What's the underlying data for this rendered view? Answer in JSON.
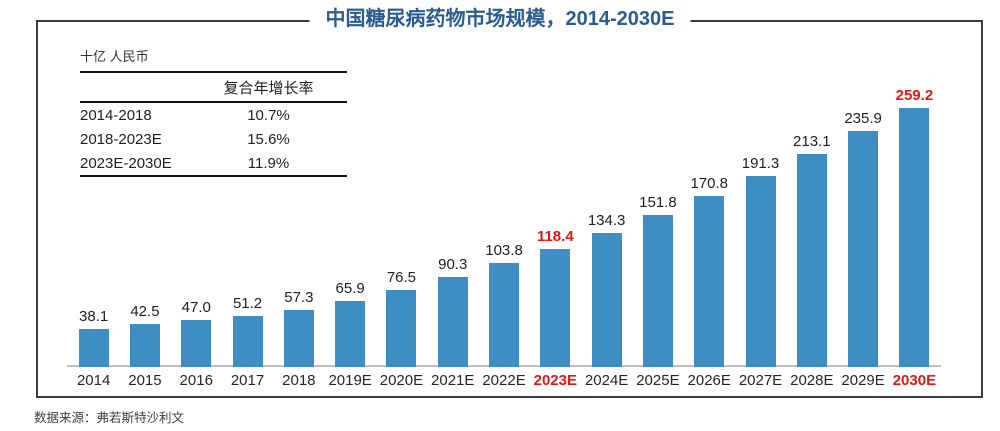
{
  "title": "中国糖尿病药物市场规模，2014-2030E",
  "unit_label": "十亿 人民币",
  "cagr_table": {
    "header": "复合年增长率",
    "rows": [
      {
        "period": "2014-2018",
        "value": "10.7%"
      },
      {
        "period": "2018-2023E",
        "value": "15.6%"
      },
      {
        "period": "2023E-2030E",
        "value": "11.9%"
      }
    ]
  },
  "source": "数据来源：弗若斯特沙利文",
  "colors": {
    "bar": "#3e8ec4",
    "title_blue": "#2b5c90",
    "highlight_red": "#e31814",
    "axis_gray": "#bfbfbf",
    "frame_border": "#3c3c3c"
  },
  "chart_data": {
    "type": "bar",
    "categories": [
      "2014",
      "2015",
      "2016",
      "2017",
      "2018",
      "2019E",
      "2020E",
      "2021E",
      "2022E",
      "2023E",
      "2024E",
      "2025E",
      "2026E",
      "2027E",
      "2028E",
      "2029E",
      "2030E"
    ],
    "values": [
      38.1,
      42.5,
      47.0,
      51.2,
      57.3,
      65.9,
      76.5,
      90.3,
      103.8,
      118.4,
      134.3,
      151.8,
      170.8,
      191.3,
      213.1,
      235.9,
      259.2
    ],
    "highlighted_categories": [
      "2023E",
      "2030E"
    ],
    "title": "中国糖尿病药物市场规模，2014-2030E",
    "xlabel": "",
    "ylabel": "十亿 人民币",
    "ylim": [
      0,
      260
    ],
    "grid": false,
    "legend": false,
    "value_labels": "above-bars"
  }
}
